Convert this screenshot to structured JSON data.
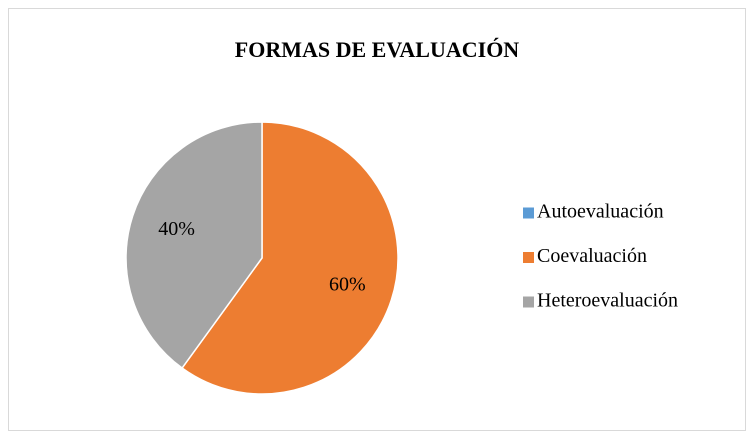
{
  "chart_data": {
    "type": "pie",
    "title": "FORMAS DE EVALUACIÓN",
    "categories": [
      "Autoevaluación",
      "Coevaluación",
      "Heteroevaluación"
    ],
    "values": [
      0,
      60,
      40
    ],
    "value_labels": [
      null,
      "60%",
      "40%"
    ],
    "colors": [
      "#5b9bd5",
      "#ed7d31",
      "#a5a5a5"
    ],
    "legend": "right"
  }
}
